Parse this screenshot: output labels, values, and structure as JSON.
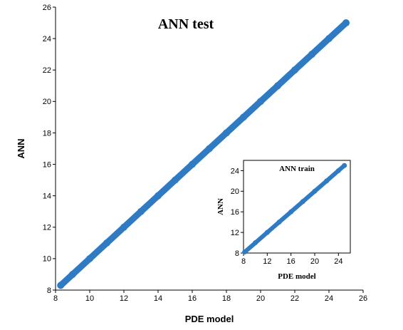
{
  "chart_data": [
    {
      "type": "scatter",
      "title": "ANN test",
      "xlabel": "PDE model",
      "ylabel": "ANN",
      "xlim": [
        8,
        26
      ],
      "ylim": [
        8,
        26
      ],
      "xticks": [
        "8",
        "10",
        "12",
        "14",
        "16",
        "18",
        "20",
        "22",
        "24",
        "26"
      ],
      "yticks": [
        "8",
        "10",
        "12",
        "14",
        "16",
        "18",
        "20",
        "22",
        "24",
        "26"
      ],
      "color": "#2e7bc4",
      "grid": false,
      "series": [
        {
          "x": [
            8.3,
            9,
            10,
            11,
            12,
            13,
            14,
            15,
            16,
            17,
            18,
            19,
            20,
            21,
            22,
            23,
            24,
            25
          ],
          "y": [
            8.3,
            9,
            10,
            11,
            12,
            13,
            14,
            15,
            16,
            17,
            18,
            19,
            20,
            21,
            22,
            23,
            24,
            25
          ]
        }
      ]
    },
    {
      "type": "scatter",
      "title": "ANN train",
      "xlabel": "PDE model",
      "ylabel": "ANN",
      "xlim": [
        8,
        26
      ],
      "ylim": [
        8,
        26
      ],
      "xticks": [
        "8",
        "12",
        "16",
        "20",
        "24"
      ],
      "yticks": [
        "8",
        "12",
        "16",
        "20",
        "24"
      ],
      "color": "#2e7bc4",
      "grid": false,
      "series": [
        {
          "x": [
            8.2,
            10,
            12,
            14,
            16,
            18,
            20,
            22,
            24,
            25
          ],
          "y": [
            8.2,
            10,
            12,
            14,
            16,
            18,
            20,
            22,
            24,
            25
          ]
        }
      ]
    }
  ]
}
